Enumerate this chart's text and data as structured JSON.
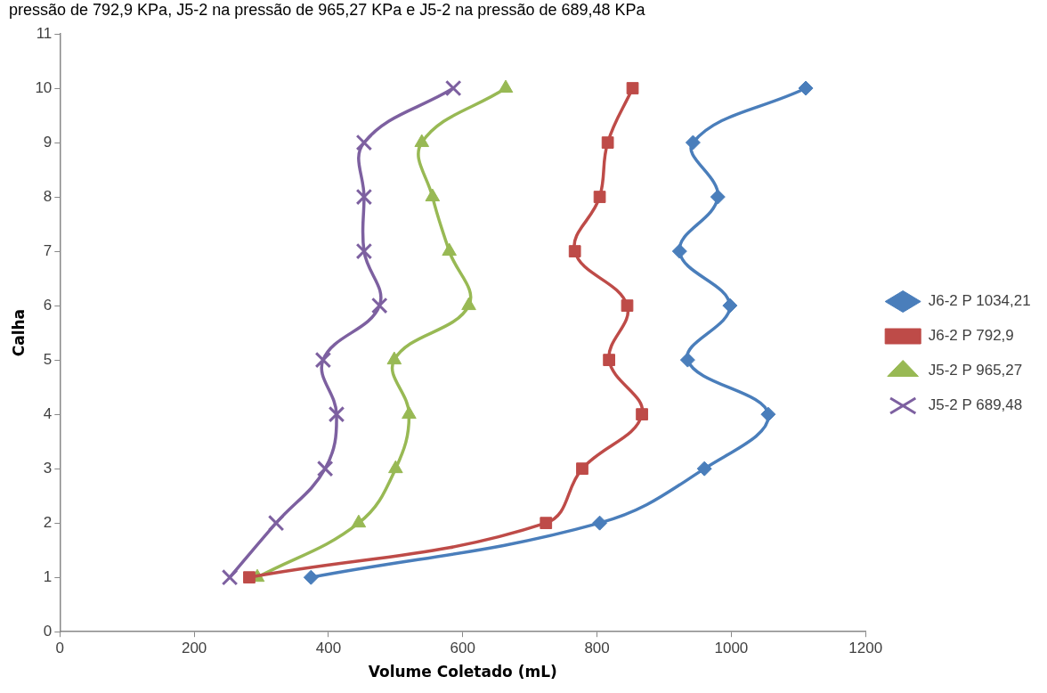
{
  "chart_data": {
    "type": "line",
    "annotations": [
      "pressão de 792,9 KPa, J5-2 na pressão de 965,27 KPa e J5-2 na pressão de 689,48 KPa"
    ],
    "xlabel": "Volume Coletado (mL)",
    "ylabel": "Calha",
    "xlim": [
      0,
      1200
    ],
    "xticks": [
      0,
      200,
      400,
      600,
      800,
      1000,
      1200
    ],
    "ylim": [
      0,
      11
    ],
    "yticks": [
      0,
      1,
      2,
      3,
      4,
      5,
      6,
      7,
      8,
      9,
      10,
      11
    ],
    "grid": false,
    "legend": "right",
    "line_style": "solid",
    "series": [
      {
        "name": "J6-2 P 1034,21",
        "color": "#4a7ebb",
        "marker": "diamond",
        "x": [
          374,
          804,
          960,
          1055,
          935,
          998,
          923,
          980,
          943,
          1111
        ],
        "values": [
          1,
          2,
          3,
          4,
          5,
          6,
          7,
          8,
          9,
          10
        ]
      },
      {
        "name": "J6-2 P 792,9",
        "color": "#be4b48",
        "marker": "square",
        "x": [
          282,
          724,
          778,
          867,
          818,
          845,
          767,
          804,
          816,
          853
        ],
        "values": [
          1,
          2,
          3,
          4,
          5,
          6,
          7,
          8,
          9,
          10
        ]
      },
      {
        "name": "J5-2 P 965,27",
        "color": "#98b954",
        "marker": "triangle",
        "x": [
          294,
          445,
          500,
          520,
          498,
          609,
          580,
          555,
          539,
          664
        ],
        "values": [
          1,
          2,
          3,
          4,
          5,
          6,
          7,
          8,
          9,
          10
        ]
      },
      {
        "name": "J5-2 P 689,48",
        "color": "#7d60a0",
        "marker": "cross",
        "x": [
          253,
          322,
          395,
          412,
          392,
          476,
          453,
          453,
          453,
          586
        ],
        "values": [
          1,
          2,
          3,
          4,
          5,
          6,
          7,
          8,
          9,
          10
        ]
      }
    ]
  }
}
